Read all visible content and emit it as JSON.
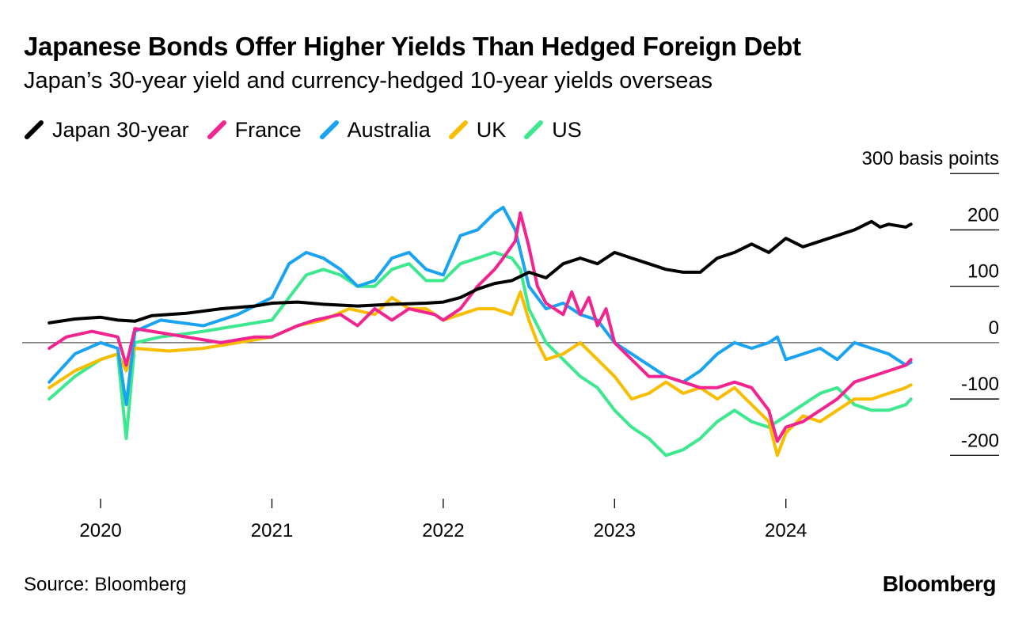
{
  "header": {
    "title": "Japanese Bonds Offer Higher Yields Than Hedged Foreign Debt",
    "subtitle": "Japan’s 30-year yield and currency-hedged 10-year yields overseas"
  },
  "footer": {
    "source": "Source: Bloomberg",
    "brand": "Bloomberg"
  },
  "chart_data": {
    "type": "line",
    "title": "Japanese Bonds Offer Higher Yields Than Hedged Foreign Debt",
    "subtitle": "Japan’s 30-year yield and currency-hedged 10-year yields overseas",
    "y_unit_label": "300 basis points",
    "y_ticks": [
      300,
      200,
      100,
      0,
      -100,
      -200
    ],
    "y_tick_labels": [
      "300 basis points",
      "200",
      "100",
      "0",
      "-100",
      "-200"
    ],
    "ylim": [
      -260,
      320
    ],
    "xlim": [
      2019.69,
      2024.75
    ],
    "x_ticks": [
      2020,
      2021,
      2022,
      2023,
      2024
    ],
    "x_tick_labels": [
      "2020",
      "2021",
      "2022",
      "2023",
      "2024"
    ],
    "legend_position": "top-left",
    "series": [
      {
        "name": "Japan 30-year",
        "color": "#000000",
        "x": [
          2019.7,
          2019.85,
          2020.0,
          2020.1,
          2020.2,
          2020.3,
          2020.5,
          2020.7,
          2020.9,
          2021.0,
          2021.15,
          2021.3,
          2021.5,
          2021.7,
          2021.9,
          2022.0,
          2022.1,
          2022.2,
          2022.3,
          2022.4,
          2022.5,
          2022.6,
          2022.7,
          2022.8,
          2022.9,
          2023.0,
          2023.1,
          2023.2,
          2023.3,
          2023.4,
          2023.5,
          2023.6,
          2023.7,
          2023.8,
          2023.9,
          2024.0,
          2024.1,
          2024.2,
          2024.3,
          2024.4,
          2024.5,
          2024.55,
          2024.6,
          2024.7,
          2024.73
        ],
        "values": [
          35,
          42,
          45,
          40,
          38,
          48,
          52,
          60,
          65,
          70,
          72,
          68,
          65,
          68,
          70,
          72,
          80,
          95,
          105,
          110,
          125,
          115,
          140,
          150,
          140,
          160,
          150,
          140,
          130,
          125,
          125,
          150,
          160,
          175,
          160,
          185,
          170,
          180,
          190,
          200,
          215,
          205,
          210,
          205,
          210
        ]
      },
      {
        "name": "France",
        "color": "#f2248f",
        "x": [
          2019.7,
          2019.8,
          2019.95,
          2020.1,
          2020.15,
          2020.2,
          2020.3,
          2020.5,
          2020.7,
          2020.9,
          2021.0,
          2021.15,
          2021.25,
          2021.4,
          2021.5,
          2021.6,
          2021.7,
          2021.8,
          2021.95,
          2022.0,
          2022.1,
          2022.2,
          2022.3,
          2022.35,
          2022.42,
          2022.45,
          2022.5,
          2022.55,
          2022.6,
          2022.7,
          2022.75,
          2022.8,
          2022.85,
          2022.9,
          2022.95,
          2023.0,
          2023.1,
          2023.2,
          2023.3,
          2023.4,
          2023.5,
          2023.6,
          2023.7,
          2023.8,
          2023.9,
          2023.95,
          2024.0,
          2024.1,
          2024.2,
          2024.3,
          2024.4,
          2024.5,
          2024.6,
          2024.7,
          2024.73
        ],
        "values": [
          -10,
          10,
          20,
          10,
          -40,
          25,
          20,
          10,
          0,
          10,
          10,
          30,
          40,
          50,
          30,
          60,
          40,
          60,
          50,
          40,
          60,
          100,
          130,
          150,
          180,
          230,
          170,
          100,
          70,
          50,
          90,
          50,
          80,
          30,
          60,
          0,
          -30,
          -60,
          -60,
          -70,
          -80,
          -80,
          -70,
          -80,
          -120,
          -175,
          -150,
          -140,
          -120,
          -100,
          -70,
          -60,
          -50,
          -40,
          -30
        ]
      },
      {
        "name": "Australia",
        "color": "#1aa3f0",
        "x": [
          2019.7,
          2019.85,
          2020.0,
          2020.1,
          2020.15,
          2020.2,
          2020.35,
          2020.6,
          2020.8,
          2021.0,
          2021.1,
          2021.2,
          2021.3,
          2021.4,
          2021.5,
          2021.6,
          2021.7,
          2021.8,
          2021.9,
          2022.0,
          2022.1,
          2022.2,
          2022.3,
          2022.35,
          2022.42,
          2022.5,
          2022.55,
          2022.6,
          2022.7,
          2022.8,
          2022.9,
          2023.0,
          2023.1,
          2023.2,
          2023.3,
          2023.4,
          2023.5,
          2023.6,
          2023.7,
          2023.8,
          2023.9,
          2023.95,
          2024.0,
          2024.1,
          2024.2,
          2024.3,
          2024.4,
          2024.5,
          2024.6,
          2024.7,
          2024.73
        ],
        "values": [
          -70,
          -20,
          0,
          -10,
          -110,
          20,
          40,
          30,
          50,
          80,
          140,
          160,
          150,
          130,
          100,
          110,
          150,
          160,
          130,
          120,
          190,
          200,
          230,
          240,
          200,
          100,
          80,
          60,
          70,
          50,
          40,
          0,
          -20,
          -40,
          -60,
          -70,
          -50,
          -20,
          0,
          -10,
          0,
          10,
          -30,
          -20,
          -10,
          -30,
          0,
          -10,
          -20,
          -40,
          -35
        ]
      },
      {
        "name": "UK",
        "color": "#f9bd00",
        "x": [
          2019.7,
          2019.85,
          2020.0,
          2020.1,
          2020.15,
          2020.2,
          2020.4,
          2020.6,
          2020.8,
          2021.0,
          2021.15,
          2021.3,
          2021.45,
          2021.6,
          2021.7,
          2021.8,
          2021.9,
          2022.0,
          2022.1,
          2022.2,
          2022.3,
          2022.4,
          2022.45,
          2022.5,
          2022.55,
          2022.6,
          2022.7,
          2022.8,
          2022.9,
          2023.0,
          2023.1,
          2023.2,
          2023.3,
          2023.4,
          2023.5,
          2023.6,
          2023.7,
          2023.8,
          2023.9,
          2023.95,
          2024.0,
          2024.1,
          2024.2,
          2024.3,
          2024.4,
          2024.5,
          2024.6,
          2024.7,
          2024.73
        ],
        "values": [
          -80,
          -50,
          -30,
          -20,
          -50,
          -10,
          -15,
          -10,
          0,
          10,
          30,
          40,
          60,
          50,
          80,
          60,
          60,
          40,
          50,
          60,
          60,
          50,
          90,
          40,
          0,
          -30,
          -20,
          0,
          -30,
          -60,
          -100,
          -90,
          -70,
          -90,
          -80,
          -100,
          -80,
          -110,
          -140,
          -200,
          -160,
          -130,
          -140,
          -120,
          -100,
          -100,
          -90,
          -80,
          -75
        ]
      },
      {
        "name": "US",
        "color": "#3de88f",
        "x": [
          2019.7,
          2019.85,
          2020.0,
          2020.1,
          2020.15,
          2020.2,
          2020.35,
          2020.6,
          2020.8,
          2021.0,
          2021.1,
          2021.2,
          2021.3,
          2021.4,
          2021.5,
          2021.6,
          2021.7,
          2021.8,
          2021.9,
          2022.0,
          2022.1,
          2022.2,
          2022.3,
          2022.4,
          2022.45,
          2022.5,
          2022.55,
          2022.6,
          2022.7,
          2022.8,
          2022.9,
          2023.0,
          2023.1,
          2023.2,
          2023.3,
          2023.4,
          2023.5,
          2023.6,
          2023.7,
          2023.8,
          2023.9,
          2024.0,
          2024.1,
          2024.2,
          2024.3,
          2024.4,
          2024.5,
          2024.6,
          2024.7,
          2024.73
        ],
        "values": [
          -100,
          -60,
          -30,
          -20,
          -170,
          0,
          10,
          20,
          30,
          40,
          80,
          120,
          130,
          120,
          100,
          100,
          130,
          140,
          110,
          110,
          140,
          150,
          160,
          150,
          130,
          60,
          30,
          0,
          -30,
          -60,
          -80,
          -120,
          -150,
          -170,
          -200,
          -190,
          -170,
          -140,
          -120,
          -140,
          -150,
          -130,
          -110,
          -90,
          -80,
          -110,
          -120,
          -120,
          -110,
          -100
        ]
      }
    ]
  }
}
